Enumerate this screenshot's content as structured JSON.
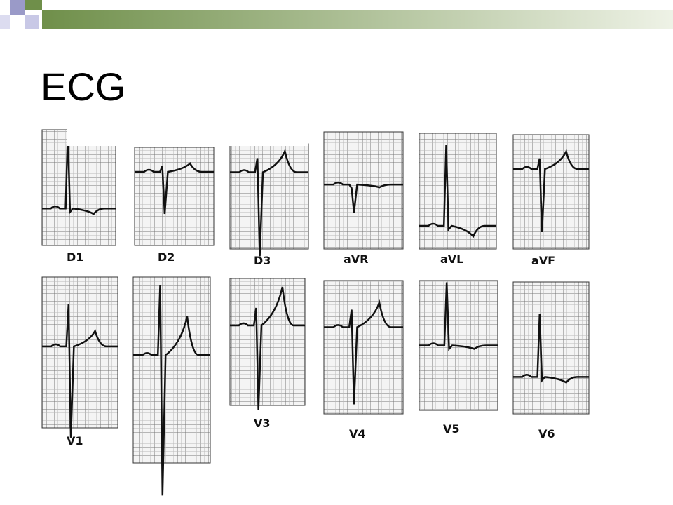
{
  "title": "ECG",
  "leads": {
    "D1": "D1",
    "D2": "D2",
    "D3": "D3",
    "aVR": "aVR",
    "aVL": "aVL",
    "aVF": "aVF",
    "V1": "V1",
    "V3": "V3",
    "V4": "V4",
    "V5": "V5",
    "V6": "V6"
  }
}
